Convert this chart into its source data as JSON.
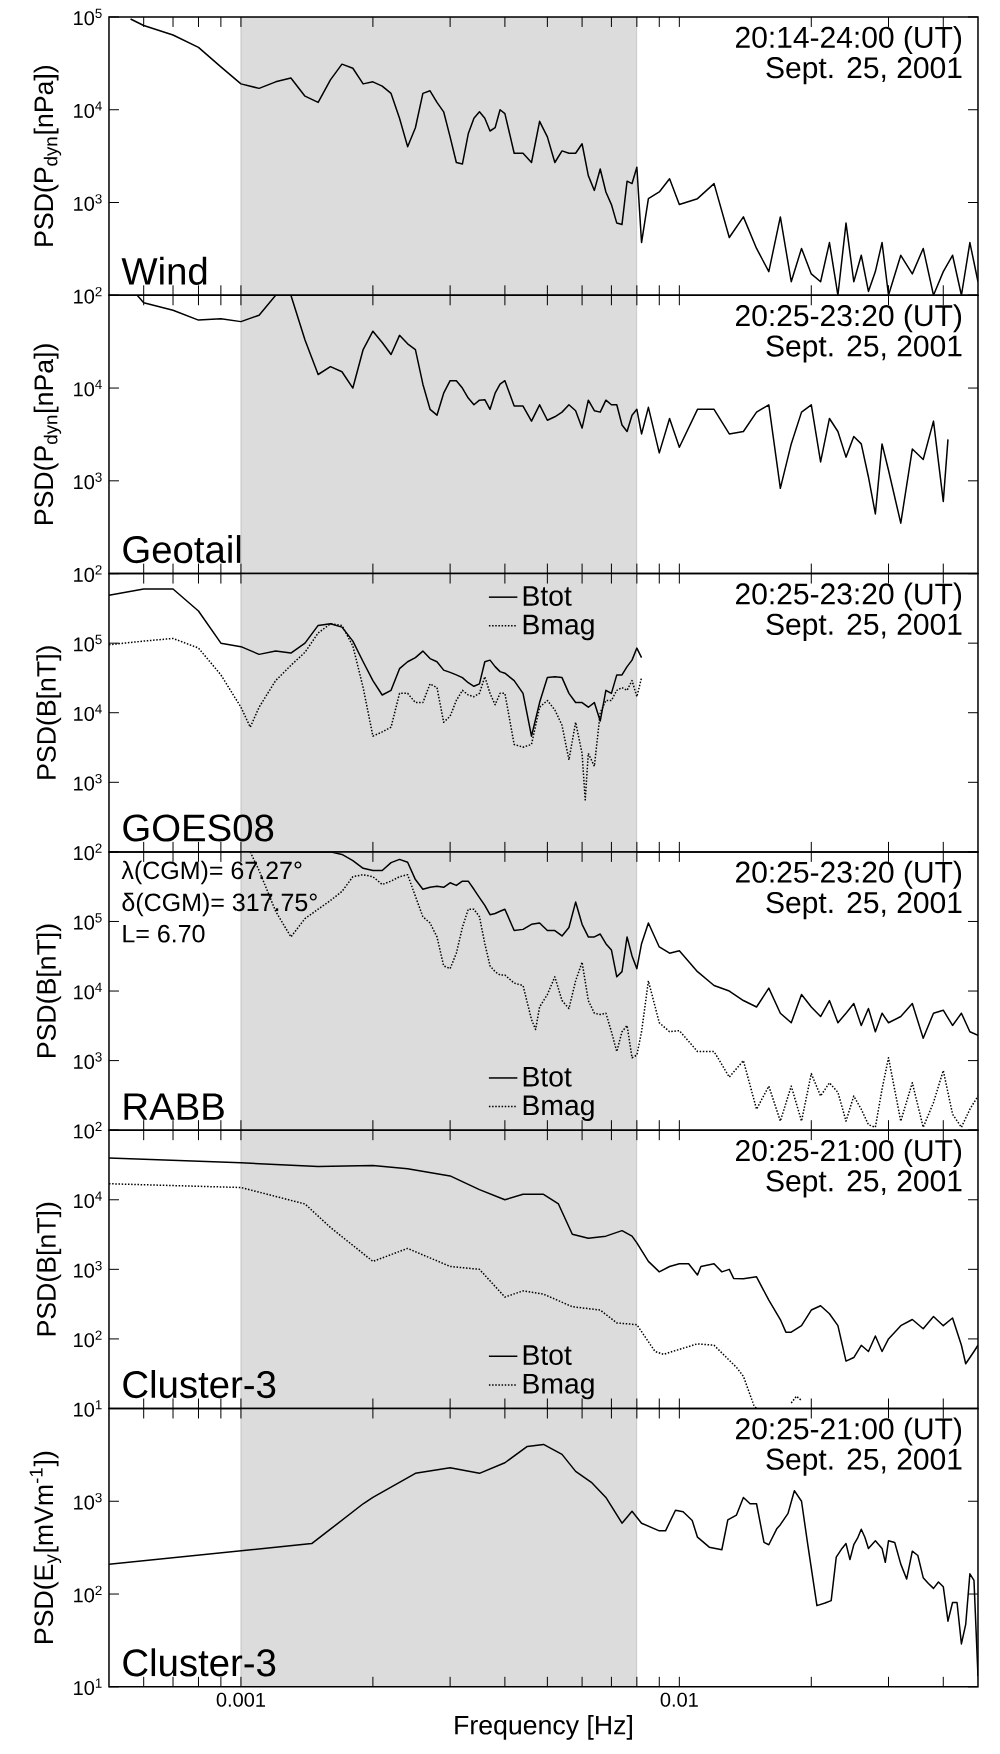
{
  "chart_data": [
    {
      "type": "line",
      "ylabel": "PSD(P$_{dyn}$[nPa])",
      "log": "xy",
      "tick_labels": "y",
      "xlim": [
        0.0005,
        0.048
      ],
      "ylim": [
        100,
        100000
      ],
      "xticks": [
        {
          "value": 0.0006,
          "label": null
        },
        {
          "value": 0.0007,
          "label": null
        },
        {
          "value": 0.0008,
          "label": null
        },
        {
          "value": 0.0009,
          "label": null
        },
        0.001,
        {
          "value": 0.002,
          "label": null
        },
        {
          "value": 0.003,
          "label": null
        },
        {
          "value": 0.004,
          "label": null
        },
        {
          "value": 0.005,
          "label": null
        },
        {
          "value": 0.006,
          "label": null
        },
        {
          "value": 0.007,
          "label": null
        },
        {
          "value": 0.008,
          "label": null
        },
        {
          "value": 0.009,
          "label": null
        },
        0.01,
        {
          "value": 0.02,
          "label": null
        },
        {
          "value": 0.03,
          "label": null
        },
        {
          "value": 0.04,
          "label": null
        }
      ],
      "yticks": [
        {
          "value": 100000,
          "label": "10$^{5}$"
        },
        {
          "value": 10000,
          "label": "10$^{4}$"
        },
        {
          "value": 1000,
          "label": "10$^{3}$"
        },
        {
          "value": 100,
          "label": "10$^{2}$"
        }
      ],
      "bands": [
        {
          "axis": "x",
          "from": 0.001,
          "to": 0.008,
          "color": "#dcdcdc"
        }
      ],
      "annotations": [
        "20:14-24:00 (UT)",
        "Sept. 25, 2001",
        "Wind"
      ],
      "series": [
        {
          "color": "#000000",
          "x": [
            0.00056,
            0.0006,
            0.0007,
            0.0008,
            0.0009,
            0.001,
            0.0011,
            0.0012,
            0.0013,
            0.0014,
            0.0015,
            0.0016,
            0.0017,
            0.0018,
            0.0019,
            0.002,
            0.0021,
            0.0022,
            0.0023,
            0.0024,
            0.0025,
            0.0026,
            0.0027,
            0.0028,
            0.0029,
            0.003,
            0.0031,
            0.0032,
            0.0033,
            0.0034,
            0.0035,
            0.0036,
            0.0037,
            0.0038,
            0.0039,
            0.004,
            0.0042,
            0.0044,
            0.0046,
            0.0048,
            0.005,
            0.0052,
            0.0054,
            0.0056,
            0.0058,
            0.006,
            0.0062,
            0.0064,
            0.0066,
            0.0068,
            0.007,
            0.0072,
            0.0074,
            0.0076,
            0.0078,
            0.008,
            0.0082,
            0.0085,
            0.009,
            0.0095,
            0.01,
            0.011,
            0.012,
            0.013,
            0.014,
            0.015,
            0.016,
            0.017,
            0.018,
            0.019,
            0.02,
            0.021,
            0.022,
            0.023,
            0.024,
            0.025,
            0.026,
            0.027,
            0.028,
            0.029,
            0.03,
            0.032,
            0.034,
            0.036,
            0.038,
            0.04,
            0.042,
            0.044,
            0.046,
            0.048
          ],
          "values": [
            95000,
            81000,
            64000,
            47000,
            29000,
            19000,
            17000,
            20000,
            22000,
            14000,
            12000,
            21000,
            31000,
            28000,
            19000,
            20000,
            18000,
            15000,
            8100,
            4000,
            6400,
            15000,
            16000,
            12000,
            9500,
            5100,
            2700,
            2600,
            5500,
            8100,
            9500,
            8100,
            5900,
            6400,
            10000,
            9100,
            3400,
            3400,
            2700,
            7500,
            5100,
            2700,
            3600,
            3400,
            3400,
            4300,
            1950,
            1350,
            2300,
            1300,
            950,
            600,
            580,
            1700,
            1600,
            2400,
            370,
            1100,
            1300,
            1800,
            950,
            1100,
            1600,
            420,
            700,
            320,
            180,
            700,
            140,
            320,
            170,
            140,
            370,
            100,
            600,
            140,
            270,
            110,
            180,
            370,
            100,
            270,
            170,
            320,
            100,
            180,
            270,
            100,
            370,
            140
          ]
        }
      ]
    },
    {
      "type": "line",
      "ylabel": "PSD(P$_{dyn}$[nPa])",
      "log": "xy",
      "tick_labels": "y",
      "xlim": [
        0.0005,
        0.048
      ],
      "ylim": [
        100,
        100000
      ],
      "xticks": [
        {
          "value": 0.0006,
          "label": null
        },
        {
          "value": 0.0007,
          "label": null
        },
        {
          "value": 0.0008,
          "label": null
        },
        {
          "value": 0.0009,
          "label": null
        },
        0.001,
        {
          "value": 0.002,
          "label": null
        },
        {
          "value": 0.003,
          "label": null
        },
        {
          "value": 0.004,
          "label": null
        },
        {
          "value": 0.005,
          "label": null
        },
        {
          "value": 0.006,
          "label": null
        },
        {
          "value": 0.007,
          "label": null
        },
        {
          "value": 0.008,
          "label": null
        },
        {
          "value": 0.009,
          "label": null
        },
        0.01,
        {
          "value": 0.02,
          "label": null
        },
        {
          "value": 0.03,
          "label": null
        },
        {
          "value": 0.04,
          "label": null
        }
      ],
      "yticks": [
        {
          "value": 100000,
          "label": null
        },
        {
          "value": 10000,
          "label": "10$^{4}$"
        },
        {
          "value": 1000,
          "label": "10$^{3}$"
        },
        {
          "value": 100,
          "label": "10$^{2}$"
        }
      ],
      "bands": [
        {
          "axis": "x",
          "from": 0.001,
          "to": 0.008,
          "color": "#dcdcdc"
        }
      ],
      "annotations": [
        "20:25-23:20 (UT)",
        "Sept. 25, 2001",
        "Geotail"
      ],
      "series": [
        {
          "color": "#000000",
          "x": [
            0.00058,
            0.0006,
            0.0007,
            0.0008,
            0.0009,
            0.001,
            0.0011,
            0.0012,
            0.0013,
            0.0014,
            0.0015,
            0.0016,
            0.0017,
            0.0018,
            0.0019,
            0.002,
            0.0021,
            0.0022,
            0.0023,
            0.0024,
            0.0025,
            0.0026,
            0.0027,
            0.0028,
            0.0029,
            0.003,
            0.0031,
            0.0032,
            0.0033,
            0.0034,
            0.0035,
            0.0036,
            0.0037,
            0.0038,
            0.0039,
            0.004,
            0.0042,
            0.0044,
            0.0046,
            0.0048,
            0.005,
            0.0052,
            0.0054,
            0.0056,
            0.0058,
            0.006,
            0.0062,
            0.0064,
            0.0066,
            0.0068,
            0.007,
            0.0072,
            0.0074,
            0.0076,
            0.0078,
            0.008,
            0.0082,
            0.0085,
            0.009,
            0.0095,
            0.01,
            0.011,
            0.012,
            0.013,
            0.014,
            0.015,
            0.016,
            0.017,
            0.018,
            0.019,
            0.02,
            0.021,
            0.022,
            0.023,
            0.024,
            0.025,
            0.026,
            0.027,
            0.028,
            0.029,
            0.03,
            0.032,
            0.034,
            0.036,
            0.038,
            0.04,
            0.041
          ],
          "values": [
            100000,
            83000,
            69000,
            54000,
            56000,
            52000,
            61000,
            100000,
            100000,
            33000,
            14000,
            17000,
            15000,
            10000,
            26000,
            41000,
            31000,
            23000,
            37000,
            30000,
            26000,
            11000,
            5900,
            5100,
            8800,
            12000,
            12000,
            10000,
            7800,
            6600,
            7400,
            7500,
            5900,
            8800,
            11000,
            12000,
            6400,
            6400,
            4400,
            6600,
            4500,
            4900,
            5500,
            6600,
            5700,
            3700,
            7400,
            5700,
            5500,
            7400,
            6600,
            6600,
            4000,
            3400,
            5100,
            5900,
            3200,
            6200,
            2000,
            4700,
            2300,
            5900,
            5900,
            3200,
            3400,
            5500,
            6600,
            830,
            2500,
            5500,
            6600,
            1600,
            4700,
            3400,
            1800,
            3000,
            2500,
            1100,
            440,
            2500,
            1300,
            350,
            2200,
            1700,
            4400,
            600,
            2800
          ]
        }
      ]
    },
    {
      "type": "line",
      "ylabel": "PSD(B[nT])",
      "log": "xy",
      "tick_labels": "y",
      "legend": "top",
      "xlim": [
        0.0005,
        0.048
      ],
      "ylim": [
        100,
        1000000
      ],
      "xticks": [
        {
          "value": 0.0006,
          "label": null
        },
        {
          "value": 0.0007,
          "label": null
        },
        {
          "value": 0.0008,
          "label": null
        },
        {
          "value": 0.0009,
          "label": null
        },
        0.001,
        {
          "value": 0.002,
          "label": null
        },
        {
          "value": 0.003,
          "label": null
        },
        {
          "value": 0.004,
          "label": null
        },
        {
          "value": 0.005,
          "label": null
        },
        {
          "value": 0.006,
          "label": null
        },
        {
          "value": 0.007,
          "label": null
        },
        {
          "value": 0.008,
          "label": null
        },
        {
          "value": 0.009,
          "label": null
        },
        0.01,
        {
          "value": 0.02,
          "label": null
        },
        {
          "value": 0.03,
          "label": null
        },
        {
          "value": 0.04,
          "label": null
        }
      ],
      "yticks": [
        {
          "value": 1000000,
          "label": null
        },
        {
          "value": 100000,
          "label": "10$^{5}$"
        },
        {
          "value": 10000,
          "label": "10$^{4}$"
        },
        {
          "value": 1000,
          "label": "10$^{3}$"
        },
        {
          "value": 100,
          "label": "10$^{2}$"
        }
      ],
      "bands": [
        {
          "axis": "x",
          "from": 0.001,
          "to": 0.008,
          "color": "#dcdcdc"
        }
      ],
      "annotations": [
        "20:25-23:20 (UT)",
        "Sept. 25, 2001",
        "GOES08"
      ],
      "series": [
        {
          "name": "Btot",
          "color": "#000000",
          "line_style": "solid",
          "x": [
            0.0005,
            0.0006,
            0.0007,
            0.0008,
            0.0009,
            0.001,
            0.0011,
            0.0012,
            0.0013,
            0.0014,
            0.0015,
            0.0016,
            0.0017,
            0.0018,
            0.0019,
            0.002,
            0.0021,
            0.0022,
            0.0023,
            0.0024,
            0.0025,
            0.0026,
            0.0027,
            0.0028,
            0.0029,
            0.003,
            0.0031,
            0.0032,
            0.0033,
            0.0034,
            0.0035,
            0.0036,
            0.0037,
            0.0038,
            0.0039,
            0.004,
            0.0042,
            0.0044,
            0.0046,
            0.0048,
            0.005,
            0.0052,
            0.0054,
            0.0056,
            0.0058,
            0.006,
            0.0062,
            0.0064,
            0.0066,
            0.0068,
            0.007,
            0.0072,
            0.0074,
            0.0076,
            0.0078,
            0.008,
            0.0082
          ],
          "values": [
            490000,
            600000,
            600000,
            290000,
            100000,
            89000,
            69000,
            77000,
            72000,
            100000,
            180000,
            190000,
            170000,
            107000,
            54000,
            29000,
            18000,
            21000,
            43000,
            54000,
            62000,
            77000,
            60000,
            54000,
            41000,
            38000,
            35000,
            32000,
            27000,
            24000,
            26000,
            54000,
            57000,
            46000,
            39000,
            37000,
            29000,
            19000,
            4600,
            14000,
            32000,
            33000,
            32000,
            19000,
            14000,
            14000,
            12000,
            14000,
            7600,
            21000,
            19000,
            35000,
            35000,
            46000,
            57000,
            85000,
            62000
          ]
        },
        {
          "name": "Bmag",
          "color": "#000000",
          "line_style": "dotted",
          "x": [
            0.0005,
            0.0006,
            0.0007,
            0.0008,
            0.0009,
            0.001,
            0.00105,
            0.0011,
            0.0012,
            0.0013,
            0.0014,
            0.0015,
            0.0016,
            0.0017,
            0.0018,
            0.0019,
            0.002,
            0.0021,
            0.0022,
            0.0023,
            0.0024,
            0.0025,
            0.0026,
            0.0027,
            0.0028,
            0.0029,
            0.003,
            0.0031,
            0.0032,
            0.0033,
            0.0034,
            0.0035,
            0.0036,
            0.0037,
            0.0038,
            0.0039,
            0.004,
            0.0042,
            0.0044,
            0.0046,
            0.0048,
            0.005,
            0.0052,
            0.0054,
            0.0056,
            0.0058,
            0.006,
            0.0061,
            0.0062,
            0.0064,
            0.0066,
            0.0068,
            0.007,
            0.0072,
            0.0074,
            0.0076,
            0.0078,
            0.008,
            0.0082
          ],
          "values": [
            95000,
            107000,
            117000,
            85000,
            35000,
            12000,
            6200,
            12000,
            29000,
            48000,
            74000,
            140000,
            190000,
            180000,
            91000,
            23000,
            4600,
            5300,
            6200,
            19000,
            19000,
            14000,
            14000,
            26000,
            23000,
            7300,
            8900,
            15000,
            21000,
            18000,
            17000,
            19000,
            33000,
            19000,
            13000,
            19000,
            19000,
            3500,
            3200,
            3500,
            12000,
            15000,
            11000,
            6600,
            2100,
            7300,
            2600,
            560,
            2600,
            1700,
            10000,
            15000,
            15000,
            21000,
            23000,
            21000,
            29000,
            17000,
            32000
          ]
        }
      ]
    },
    {
      "type": "line",
      "ylabel": "PSD(B[nT])",
      "log": "xy",
      "tick_labels": "y",
      "legend": "bottom",
      "xlim": [
        0.0005,
        0.048
      ],
      "ylim": [
        100,
        1000000
      ],
      "xticks": [
        {
          "value": 0.0006,
          "label": null
        },
        {
          "value": 0.0007,
          "label": null
        },
        {
          "value": 0.0008,
          "label": null
        },
        {
          "value": 0.0009,
          "label": null
        },
        0.001,
        {
          "value": 0.002,
          "label": null
        },
        {
          "value": 0.003,
          "label": null
        },
        {
          "value": 0.004,
          "label": null
        },
        {
          "value": 0.005,
          "label": null
        },
        {
          "value": 0.006,
          "label": null
        },
        {
          "value": 0.007,
          "label": null
        },
        {
          "value": 0.008,
          "label": null
        },
        {
          "value": 0.009,
          "label": null
        },
        0.01,
        {
          "value": 0.02,
          "label": null
        },
        {
          "value": 0.03,
          "label": null
        },
        {
          "value": 0.04,
          "label": null
        }
      ],
      "yticks": [
        {
          "value": 1000000,
          "label": null
        },
        {
          "value": 100000,
          "label": "10$^{5}$"
        },
        {
          "value": 10000,
          "label": "10$^{4}$"
        },
        {
          "value": 1000,
          "label": "10$^{3}$"
        },
        {
          "value": 100,
          "label": "10$^{2}$"
        }
      ],
      "bands": [
        {
          "axis": "x",
          "from": 0.001,
          "to": 0.008,
          "color": "#dcdcdc"
        }
      ],
      "annotations": [
        "20:25-23:20 (UT)",
        "Sept. 25, 2001",
        "λ(CGM)= 67.27°",
        "δ(CGM)= 317.75°",
        "L= 6.70",
        "RABB"
      ],
      "series": [
        {
          "name": "Btot",
          "color": "#000000",
          "line_style": "solid",
          "x": [
            0.00105,
            0.0012,
            0.0014,
            0.0016,
            0.0017,
            0.0018,
            0.0019,
            0.002,
            0.0021,
            0.0022,
            0.0023,
            0.0024,
            0.0025,
            0.0026,
            0.0027,
            0.0028,
            0.0029,
            0.003,
            0.0031,
            0.0032,
            0.0033,
            0.0034,
            0.0035,
            0.0036,
            0.0037,
            0.0038,
            0.0039,
            0.004,
            0.0042,
            0.0044,
            0.0046,
            0.0048,
            0.005,
            0.0052,
            0.0054,
            0.0056,
            0.0058,
            0.006,
            0.0062,
            0.0064,
            0.0066,
            0.0068,
            0.007,
            0.0072,
            0.0074,
            0.0076,
            0.0078,
            0.008,
            0.0082,
            0.0085,
            0.009,
            0.0095,
            0.01,
            0.011,
            0.012,
            0.013,
            0.014,
            0.015,
            0.016,
            0.017,
            0.018,
            0.019,
            0.02,
            0.021,
            0.022,
            0.023,
            0.024,
            0.025,
            0.026,
            0.027,
            0.028,
            0.029,
            0.03,
            0.032,
            0.034,
            0.036,
            0.038,
            0.04,
            0.042,
            0.044,
            0.046,
            0.048
          ],
          "values": [
            1000000,
            1000000,
            1000000,
            1000000,
            920000,
            750000,
            580000,
            540000,
            540000,
            700000,
            780000,
            710000,
            400000,
            290000,
            310000,
            320000,
            310000,
            360000,
            330000,
            380000,
            380000,
            290000,
            220000,
            170000,
            125000,
            130000,
            140000,
            150000,
            74000,
            77000,
            91000,
            95000,
            74000,
            74000,
            62000,
            82000,
            190000,
            91000,
            60000,
            60000,
            66000,
            48000,
            39000,
            16000,
            19000,
            60000,
            32000,
            21000,
            48000,
            95000,
            43000,
            35000,
            38000,
            19000,
            12000,
            10000,
            7300,
            5900,
            11000,
            4800,
            3500,
            8900,
            5900,
            4300,
            7300,
            3500,
            4800,
            6600,
            3200,
            5600,
            2600,
            4800,
            3500,
            4300,
            6600,
            2100,
            4800,
            5300,
            3200,
            4800,
            2600,
            2300
          ]
        },
        {
          "name": "Bmag",
          "color": "#000000",
          "line_style": "dotted",
          "x": [
            0.00105,
            0.0011,
            0.0012,
            0.0013,
            0.0014,
            0.0015,
            0.0016,
            0.0017,
            0.0018,
            0.0019,
            0.002,
            0.0021,
            0.0022,
            0.0023,
            0.0024,
            0.0025,
            0.0026,
            0.0027,
            0.0028,
            0.0029,
            0.003,
            0.0031,
            0.0032,
            0.0033,
            0.0034,
            0.0035,
            0.0036,
            0.0037,
            0.0038,
            0.0039,
            0.004,
            0.0042,
            0.0044,
            0.0046,
            0.0047,
            0.0048,
            0.005,
            0.0052,
            0.0054,
            0.0056,
            0.0058,
            0.006,
            0.0062,
            0.0064,
            0.0066,
            0.0068,
            0.007,
            0.0072,
            0.0074,
            0.0076,
            0.0078,
            0.008,
            0.0082,
            0.0085,
            0.009,
            0.0095,
            0.01,
            0.011,
            0.012,
            0.013,
            0.014,
            0.015,
            0.016,
            0.017,
            0.018,
            0.019,
            0.02,
            0.021,
            0.022,
            0.023,
            0.024,
            0.025,
            0.026,
            0.027,
            0.028,
            0.029,
            0.03,
            0.032,
            0.034,
            0.036,
            0.038,
            0.04,
            0.042,
            0.044,
            0.046,
            0.048
          ],
          "values": [
            1000000,
            540000,
            140000,
            60000,
            110000,
            150000,
            200000,
            270000,
            440000,
            470000,
            440000,
            340000,
            380000,
            440000,
            470000,
            230000,
            117000,
            95000,
            60000,
            23000,
            21000,
            35000,
            82000,
            150000,
            150000,
            117000,
            48000,
            23000,
            19000,
            17000,
            17000,
            13000,
            12000,
            3900,
            2800,
            5900,
            8900,
            16000,
            7300,
            5600,
            14000,
            26000,
            7300,
            4800,
            4600,
            4800,
            2600,
            1350,
            2600,
            3200,
            1100,
            1200,
            2600,
            14000,
            3500,
            2600,
            2700,
            1350,
            1350,
            580,
            1000,
            200,
            430,
            135,
            430,
            135,
            650,
            310,
            480,
            350,
            135,
            310,
            200,
            120,
            110,
            390,
            1100,
            135,
            480,
            110,
            250,
            720,
            170,
            110,
            200,
            310
          ]
        }
      ]
    },
    {
      "type": "line",
      "ylabel": "PSD(B[nT])",
      "log": "xy",
      "tick_labels": "y",
      "legend": "bottom",
      "xlim": [
        0.0005,
        0.048
      ],
      "ylim": [
        10,
        100000
      ],
      "xticks": [
        {
          "value": 0.0006,
          "label": null
        },
        {
          "value": 0.0007,
          "label": null
        },
        {
          "value": 0.0008,
          "label": null
        },
        {
          "value": 0.0009,
          "label": null
        },
        0.001,
        {
          "value": 0.002,
          "label": null
        },
        {
          "value": 0.003,
          "label": null
        },
        {
          "value": 0.004,
          "label": null
        },
        {
          "value": 0.005,
          "label": null
        },
        {
          "value": 0.006,
          "label": null
        },
        {
          "value": 0.007,
          "label": null
        },
        {
          "value": 0.008,
          "label": null
        },
        {
          "value": 0.009,
          "label": null
        },
        0.01,
        {
          "value": 0.02,
          "label": null
        },
        {
          "value": 0.03,
          "label": null
        },
        {
          "value": 0.04,
          "label": null
        }
      ],
      "yticks": [
        {
          "value": 100000,
          "label": null
        },
        {
          "value": 10000,
          "label": "10$^{4}$"
        },
        {
          "value": 1000,
          "label": "10$^{3}$"
        },
        {
          "value": 100,
          "label": "10$^{2}$"
        },
        {
          "value": 10,
          "label": "10$^{1}$"
        }
      ],
      "bands": [
        {
          "axis": "x",
          "from": 0.001,
          "to": 0.008,
          "color": "#dcdcdc"
        }
      ],
      "annotations": [
        "20:25-21:00 (UT)",
        "Sept. 25, 2001",
        "Cluster-3"
      ],
      "series": [
        {
          "name": "Btot",
          "color": "#000000",
          "line_style": "solid",
          "x": [
            0.0005,
            0.001,
            0.0015,
            0.002,
            0.0024,
            0.003,
            0.0035,
            0.004,
            0.0044,
            0.0049,
            0.0053,
            0.0057,
            0.0062,
            0.0068,
            0.0074,
            0.0078,
            0.008,
            0.0085,
            0.009,
            0.0095,
            0.01,
            0.0105,
            0.011,
            0.0112,
            0.012,
            0.0125,
            0.013,
            0.0133,
            0.014,
            0.015,
            0.016,
            0.017,
            0.0175,
            0.018,
            0.019,
            0.02,
            0.021,
            0.022,
            0.023,
            0.024,
            0.025,
            0.026,
            0.027,
            0.028,
            0.029,
            0.03,
            0.032,
            0.034,
            0.036,
            0.038,
            0.04,
            0.042,
            0.044,
            0.045,
            0.047,
            0.048
          ],
          "values": [
            40000,
            34000,
            30000,
            31000,
            28000,
            22000,
            14000,
            10000,
            12000,
            12000,
            8700,
            3200,
            2800,
            3000,
            3600,
            3000,
            2400,
            1300,
            920,
            1100,
            1200,
            1200,
            830,
            1100,
            1200,
            920,
            1000,
            740,
            730,
            780,
            360,
            190,
            125,
            125,
            155,
            260,
            300,
            230,
            155,
            48,
            54,
            81,
            66,
            110,
            66,
            100,
            155,
            190,
            140,
            210,
            155,
            200,
            81,
            44,
            66,
            81
          ]
        },
        {
          "name": "Bmag",
          "color": "#000000",
          "line_style": "dotted",
          "x": [
            0.0005,
            0.001,
            0.0014,
            0.0016,
            0.002,
            0.0024,
            0.003,
            0.0035,
            0.004,
            0.0044,
            0.0049,
            0.0057,
            0.0066,
            0.0072,
            0.008,
            0.0088,
            0.0092,
            0.0095,
            0.011,
            0.012,
            0.0135,
            0.014,
            0.0148,
            0.015,
            0.016,
            0.018,
            0.0185,
            0.019
          ],
          "values": [
            17000,
            15000,
            8700,
            4000,
            1300,
            2000,
            1100,
            1000,
            400,
            490,
            440,
            290,
            260,
            170,
            160,
            66,
            60,
            64,
            85,
            81,
            39,
            29,
            11,
            10,
            null,
            12,
            15,
            13
          ]
        }
      ]
    },
    {
      "type": "line",
      "xlabel": "Frequency [Hz]",
      "ylabel": "PSD(E$_{y}$[mVm$^{-1}$])",
      "log": "xy",
      "xlim": [
        0.0005,
        0.048
      ],
      "ylim": [
        10,
        10000
      ],
      "xticks": [
        {
          "value": 0.0006,
          "label": null
        },
        {
          "value": 0.0007,
          "label": null
        },
        {
          "value": 0.0008,
          "label": null
        },
        {
          "value": 0.0009,
          "label": null
        },
        0.001,
        {
          "value": 0.002,
          "label": null
        },
        {
          "value": 0.003,
          "label": null
        },
        {
          "value": 0.004,
          "label": null
        },
        {
          "value": 0.005,
          "label": null
        },
        {
          "value": 0.006,
          "label": null
        },
        {
          "value": 0.007,
          "label": null
        },
        {
          "value": 0.008,
          "label": null
        },
        {
          "value": 0.009,
          "label": null
        },
        0.01,
        {
          "value": 0.02,
          "label": null
        },
        {
          "value": 0.03,
          "label": null
        },
        {
          "value": 0.04,
          "label": null
        }
      ],
      "yticks": [
        {
          "value": 10000,
          "label": null
        },
        {
          "value": 1000,
          "label": "10$^{3}$"
        },
        {
          "value": 100,
          "label": "10$^{2}$"
        },
        {
          "value": 10,
          "label": "10$^{1}$"
        }
      ],
      "bands": [
        {
          "axis": "x",
          "from": 0.001,
          "to": 0.008,
          "color": "#dcdcdc"
        }
      ],
      "annotations": [
        "20:25-21:00 (UT)",
        "Sept. 25, 2001",
        "Cluster-3"
      ],
      "series": [
        {
          "color": "#000000",
          "x": [
            0.0005,
            0.00145,
            0.0016,
            0.0019,
            0.002,
            0.0025,
            0.003,
            0.0035,
            0.004,
            0.0045,
            0.0049,
            0.0054,
            0.0058,
            0.0063,
            0.0068,
            0.0074,
            0.0078,
            0.0082,
            0.009,
            0.0093,
            0.0098,
            0.0102,
            0.0107,
            0.011,
            0.0117,
            0.0125,
            0.0129,
            0.0135,
            0.014,
            0.0145,
            0.015,
            0.0156,
            0.016,
            0.0167,
            0.017,
            0.0177,
            0.0183,
            0.019,
            0.0196,
            0.0206,
            0.0215,
            0.0222,
            0.0228,
            0.0235,
            0.024,
            0.0245,
            0.025,
            0.0255,
            0.026,
            0.0265,
            0.027,
            0.028,
            0.029,
            0.0295,
            0.03,
            0.031,
            0.032,
            0.033,
            0.034,
            0.035,
            0.036,
            0.037,
            0.038,
            0.039,
            0.04,
            0.041,
            0.042,
            0.043,
            0.044,
            0.045,
            0.046,
            0.047,
            0.048
          ],
          "values": [
            210,
            350,
            500,
            940,
            1100,
            2000,
            2300,
            2000,
            2600,
            3900,
            4100,
            3200,
            2100,
            1600,
            1100,
            580,
            780,
            580,
            480,
            480,
            800,
            770,
            620,
            410,
            320,
            300,
            630,
            710,
            1100,
            940,
            940,
            360,
            340,
            510,
            560,
            740,
            1300,
            1000,
            360,
            75,
            80,
            85,
            250,
            310,
            350,
            235,
            340,
            400,
            500,
            410,
            310,
            375,
            310,
            220,
            375,
            360,
            210,
            145,
            290,
            260,
            150,
            130,
            115,
            135,
            120,
            51,
            81,
            81,
            29,
            47,
            165,
            140,
            13
          ]
        }
      ]
    }
  ]
}
